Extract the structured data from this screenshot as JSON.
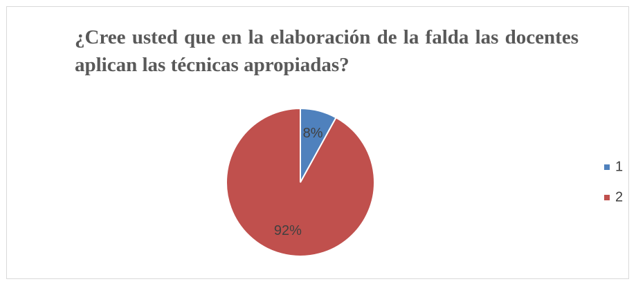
{
  "chart_data": {
    "type": "pie",
    "title": "¿Cree usted que en la elaboración de la falda las docentes aplican las técnicas apropiadas?",
    "categories": [
      "1",
      "2"
    ],
    "values": [
      8,
      92
    ],
    "value_labels": [
      "8%",
      "92%"
    ],
    "colors": [
      "#4f81bd",
      "#c0504d"
    ],
    "legend": "right"
  }
}
